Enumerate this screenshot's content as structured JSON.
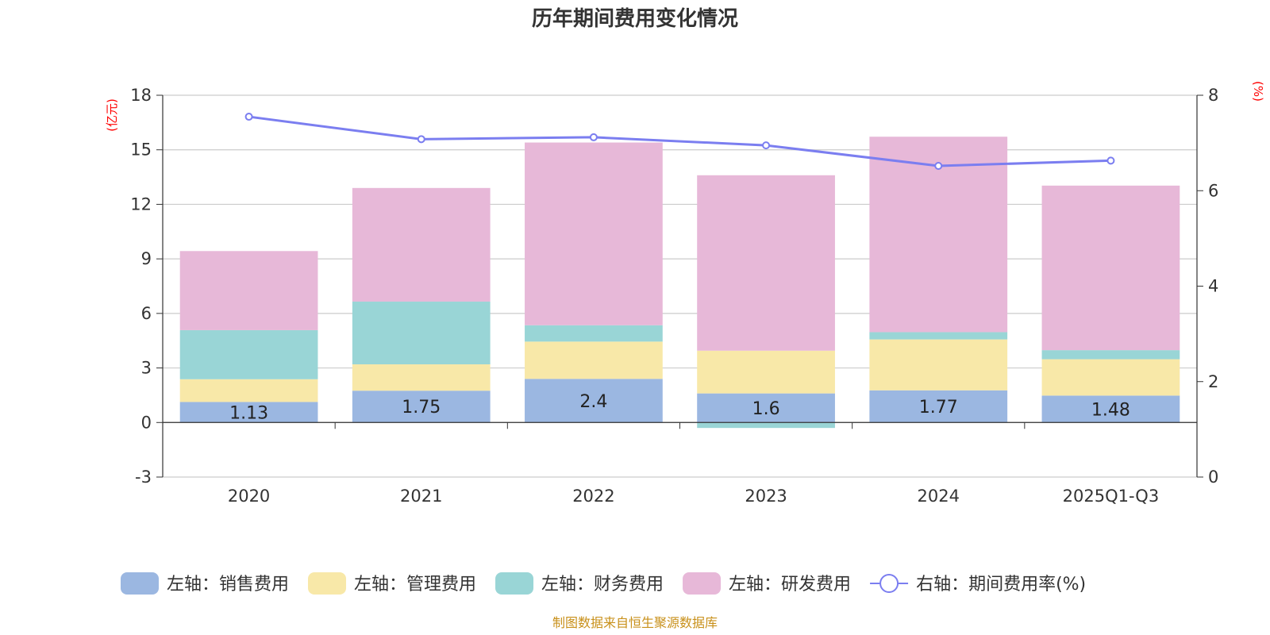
{
  "chart_data": {
    "type": "bar",
    "stacked": true,
    "title": "历年期间费用变化情况",
    "categories": [
      "2020",
      "2021",
      "2022",
      "2023",
      "2024",
      "2025Q1-Q3"
    ],
    "left_axis": {
      "unit": "(亿元)",
      "min": -3,
      "max": 18,
      "ticks": [
        -3,
        0,
        3,
        6,
        9,
        12,
        15,
        18
      ]
    },
    "right_axis": {
      "unit": "(%)",
      "min": 0,
      "max": 8,
      "ticks": [
        0,
        2,
        4,
        6,
        8
      ]
    },
    "series": [
      {
        "name": "左轴：销售费用",
        "type": "bar",
        "axis": "left",
        "color": "#9bb7e1",
        "values": [
          1.13,
          1.75,
          2.4,
          1.6,
          1.77,
          1.48
        ],
        "labels": [
          "1.13",
          "1.75",
          "2.4",
          "1.6",
          "1.77",
          "1.48"
        ]
      },
      {
        "name": "左轴：管理费用",
        "type": "bar",
        "axis": "left",
        "color": "#f8e8a8",
        "values": [
          1.25,
          1.45,
          2.05,
          2.35,
          2.8,
          2.0
        ]
      },
      {
        "name": "左轴：财务费用",
        "type": "bar",
        "axis": "left",
        "color": "#99d5d6",
        "values": [
          2.7,
          3.45,
          0.9,
          -0.3,
          0.4,
          0.5
        ]
      },
      {
        "name": "左轴：研发费用",
        "type": "bar",
        "axis": "left",
        "color": "#e7b8d8",
        "values": [
          4.35,
          6.25,
          10.05,
          9.65,
          10.75,
          9.05
        ]
      },
      {
        "name": "右轴：期间费用率(%)",
        "type": "line",
        "axis": "right",
        "color": "#7b7ef0",
        "values": [
          7.55,
          7.08,
          7.12,
          6.95,
          6.52,
          6.63
        ]
      }
    ],
    "legend_position": "bottom-center",
    "grid": true
  },
  "source_note": "制图数据来自恒生聚源数据库"
}
